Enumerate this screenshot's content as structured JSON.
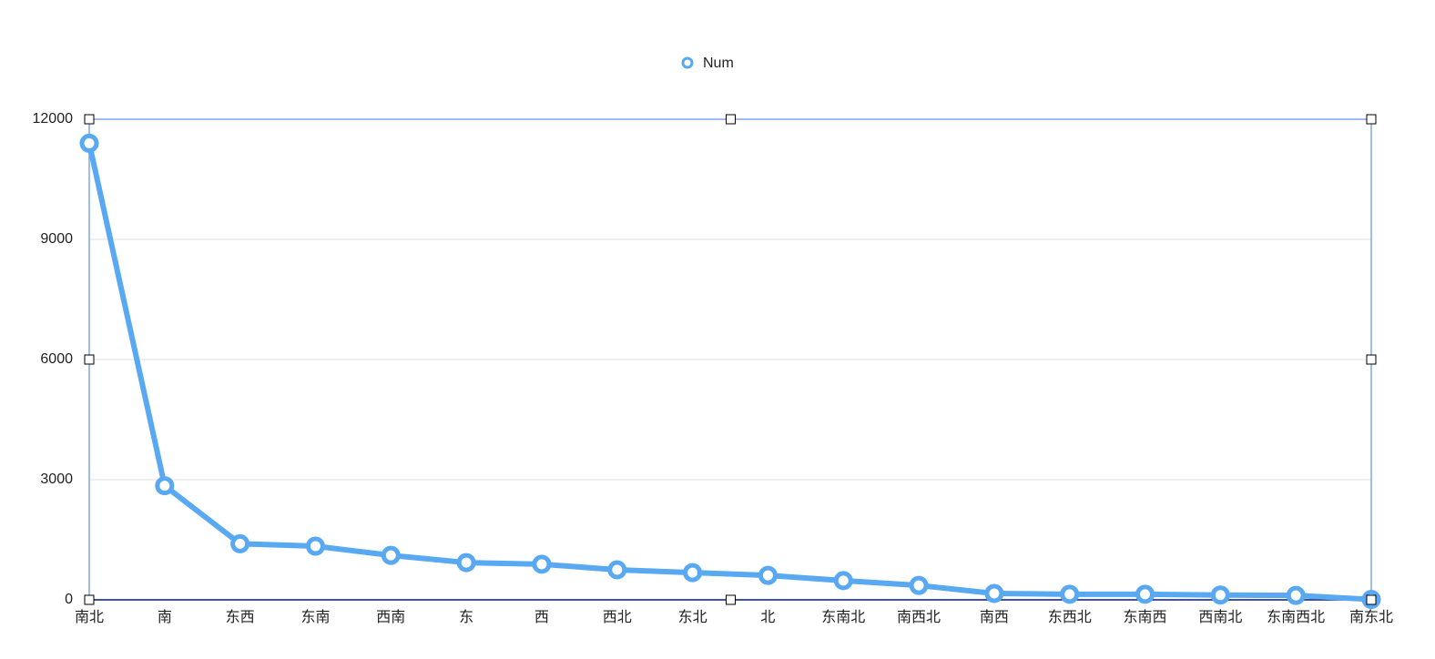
{
  "chart_data": {
    "type": "line",
    "categories": [
      "南北",
      "南",
      "东西",
      "东南",
      "西南",
      "东",
      "西",
      "西北",
      "东北",
      "北",
      "东南北",
      "南西北",
      "南西",
      "东西北",
      "东南西",
      "西南北",
      "东南西北",
      "南东北"
    ],
    "series": [
      {
        "name": "Num",
        "color": "#58a8f2",
        "values": [
          11400,
          2850,
          1400,
          1340,
          1110,
          930,
          890,
          750,
          680,
          610,
          480,
          360,
          160,
          140,
          140,
          120,
          110,
          10
        ]
      }
    ],
    "ylim": [
      0,
      12000
    ],
    "yticks": [
      0,
      3000,
      6000,
      9000,
      12000
    ],
    "grid": true,
    "legend": "top"
  }
}
